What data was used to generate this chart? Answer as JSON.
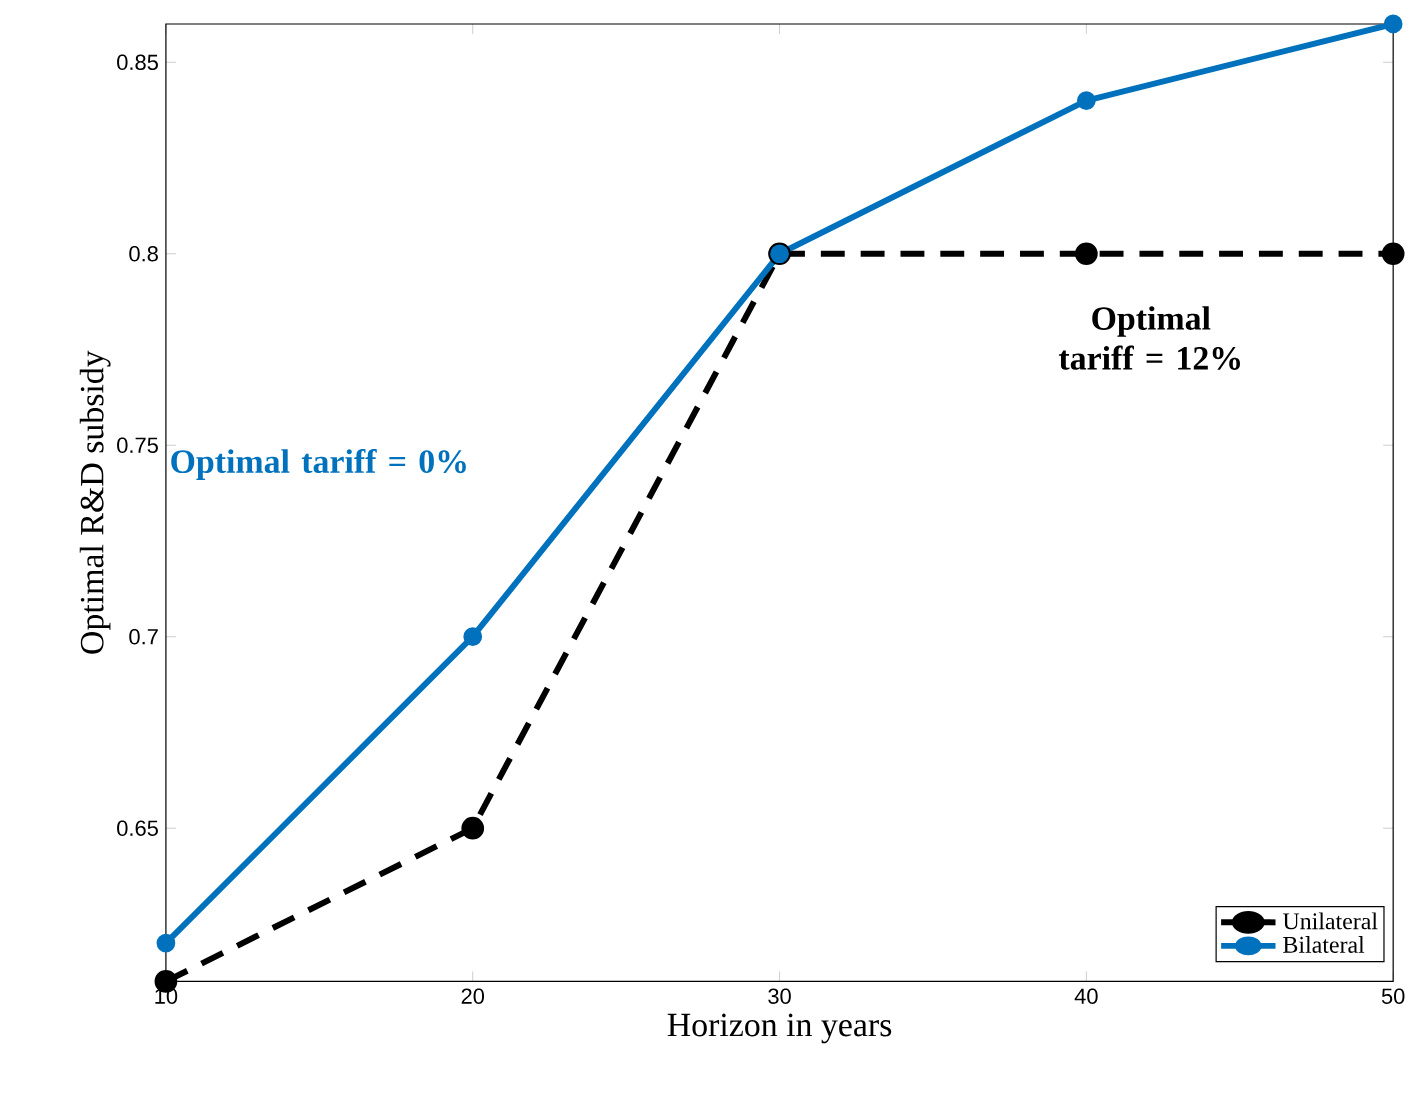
{
  "chart_data": {
    "type": "line",
    "xlabel": "Horizon in years",
    "ylabel": "Optimal R&D subsidy",
    "x": [
      10,
      20,
      30,
      40,
      50
    ],
    "series": [
      {
        "name": "Unilateral",
        "color": "#000000",
        "line_style": "dashed",
        "values": [
          0.61,
          0.65,
          0.8,
          0.8,
          0.8
        ]
      },
      {
        "name": "Bilateral",
        "color": "#0072bd",
        "line_style": "solid",
        "values": [
          0.62,
          0.7,
          0.8,
          0.84,
          0.86
        ]
      }
    ],
    "xlim": [
      10,
      50
    ],
    "xticks": [
      10,
      20,
      30,
      40,
      50
    ],
    "ylim": [
      0.61,
      0.86
    ],
    "yticks": [
      0.65,
      0.7,
      0.75,
      0.8,
      0.85
    ],
    "marker": "circle",
    "legend": "bottom right",
    "annotations": [
      "Optimal tariff = 12%",
      "Optimal tariff = 0%"
    ]
  }
}
